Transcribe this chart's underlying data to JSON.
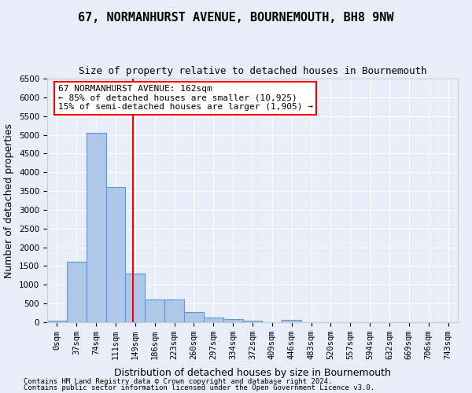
{
  "title": "67, NORMANHURST AVENUE, BOURNEMOUTH, BH8 9NW",
  "subtitle": "Size of property relative to detached houses in Bournemouth",
  "xlabel": "Distribution of detached houses by size in Bournemouth",
  "ylabel": "Number of detached properties",
  "annotation_line1": "67 NORMANHURST AVENUE: 162sqm",
  "annotation_line2": "← 85% of detached houses are smaller (10,925)",
  "annotation_line3": "15% of semi-detached houses are larger (1,905) →",
  "footer_line1": "Contains HM Land Registry data © Crown copyright and database right 2024.",
  "footer_line2": "Contains public sector information licensed under the Open Government Licence v3.0.",
  "bin_labels": [
    "0sqm",
    "37sqm",
    "74sqm",
    "111sqm",
    "149sqm",
    "186sqm",
    "223sqm",
    "260sqm",
    "297sqm",
    "334sqm",
    "372sqm",
    "409sqm",
    "446sqm",
    "483sqm",
    "520sqm",
    "557sqm",
    "594sqm",
    "632sqm",
    "669sqm",
    "706sqm",
    "743sqm"
  ],
  "bar_values": [
    50,
    1620,
    5050,
    3600,
    1300,
    600,
    600,
    280,
    130,
    90,
    50,
    10,
    55,
    5,
    5,
    5,
    5,
    5,
    5,
    5,
    5
  ],
  "bar_color": "#aec6e8",
  "bar_edge_color": "#5b9bd5",
  "red_line_x": 4.38,
  "ylim": [
    0,
    6500
  ],
  "yticks": [
    0,
    500,
    1000,
    1500,
    2000,
    2500,
    3000,
    3500,
    4000,
    4500,
    5000,
    5500,
    6000,
    6500
  ],
  "background_color": "#e8eef7",
  "plot_background": "#e8eef7",
  "grid_color": "#ffffff",
  "title_fontsize": 11,
  "subtitle_fontsize": 9,
  "axis_label_fontsize": 9,
  "tick_fontsize": 7.5,
  "annotation_fontsize": 8
}
